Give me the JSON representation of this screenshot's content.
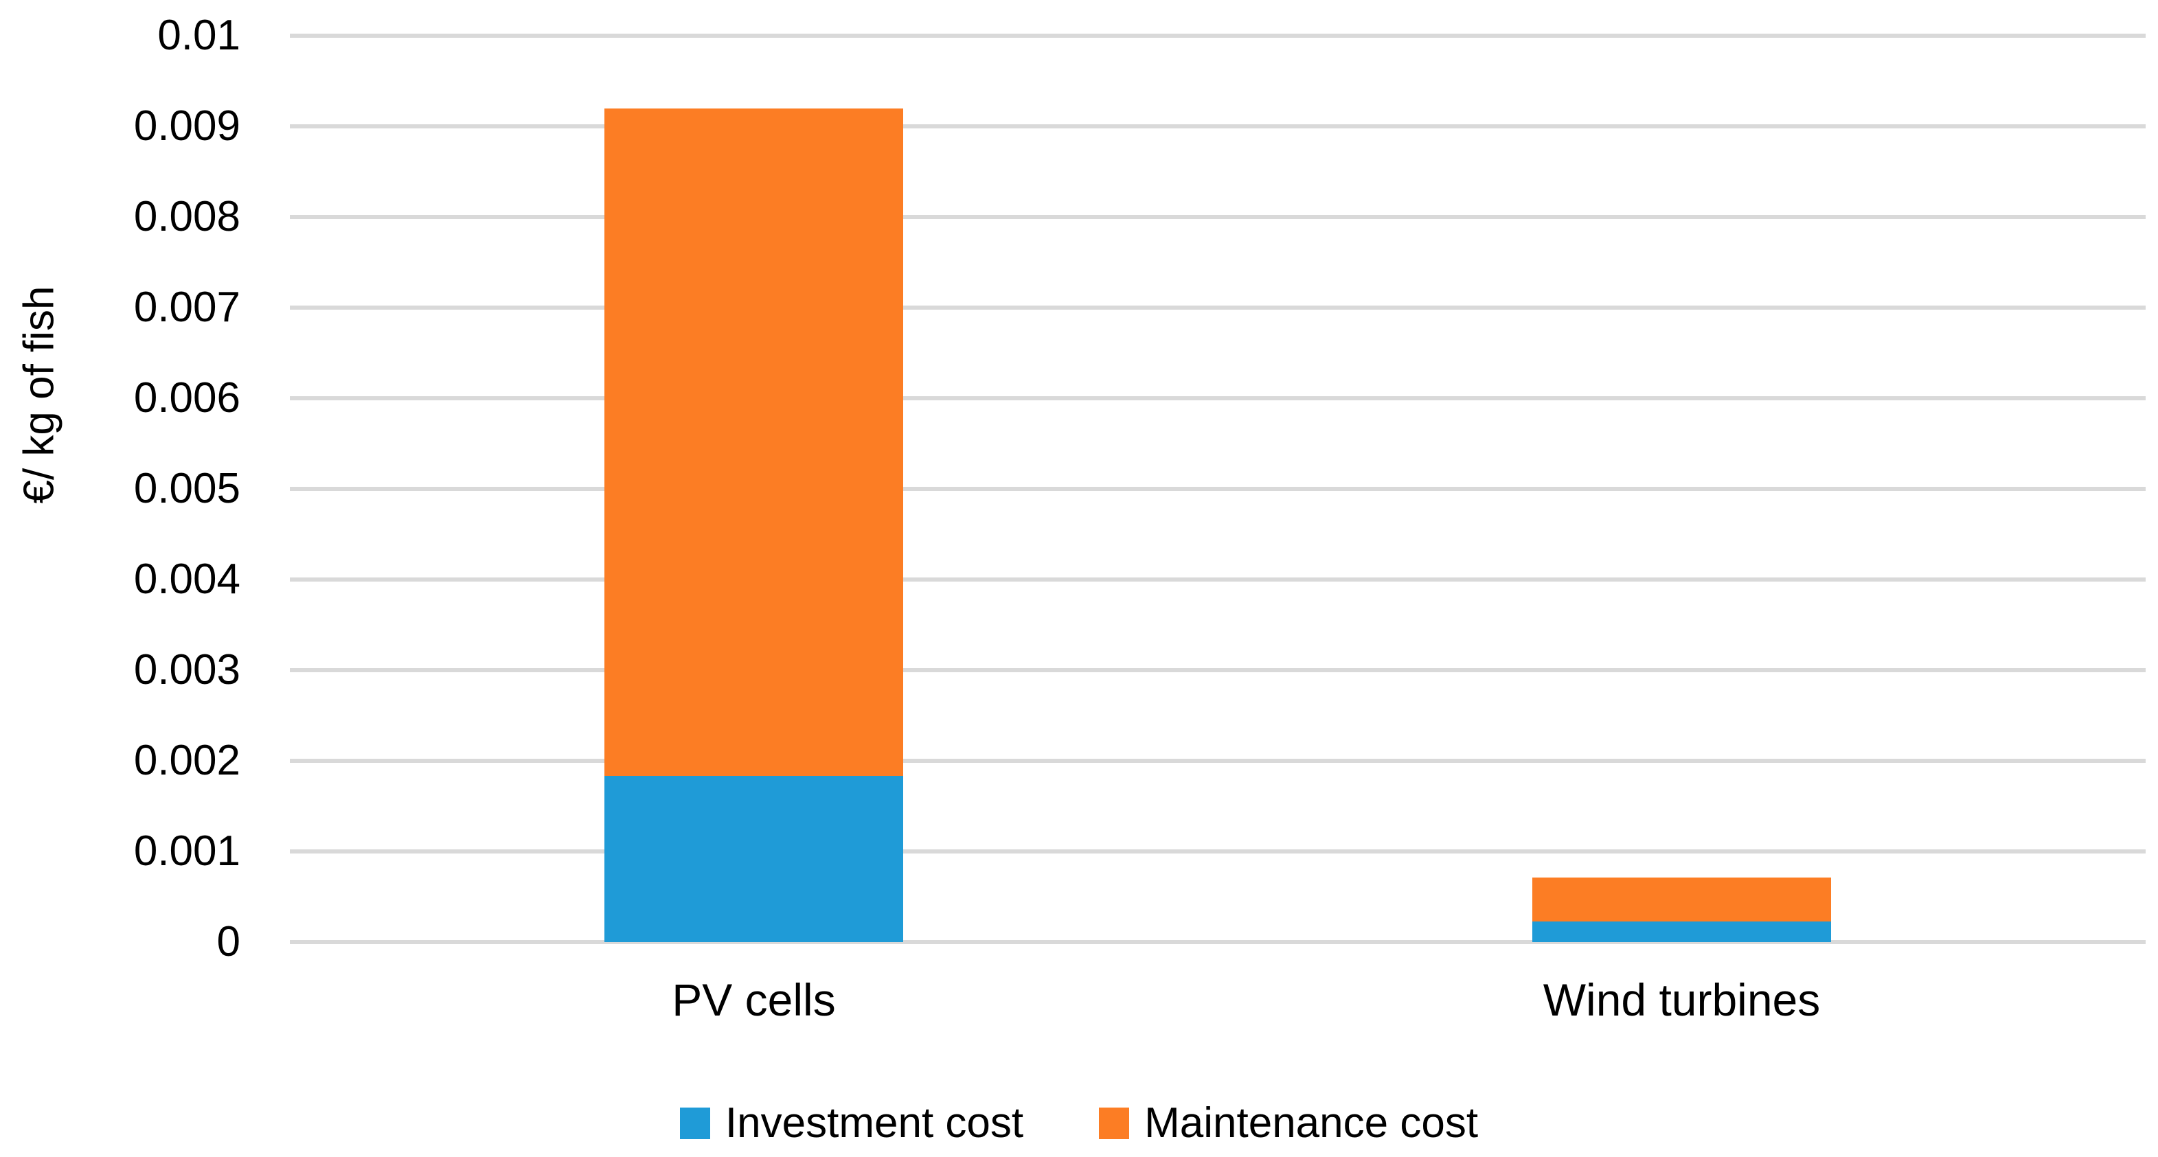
{
  "chart_data": {
    "type": "bar",
    "stacked": true,
    "title": "",
    "xlabel": "",
    "ylabel": "€/ kg of fish",
    "ylim": [
      0,
      0.01
    ],
    "grid": "horizontal-only",
    "legend_position": "bottom",
    "categories": [
      "PV cells",
      "Wind turbines"
    ],
    "series": [
      {
        "name": "Investment cost",
        "color": "#1F9BD7",
        "values": [
          0.00183,
          0.00023
        ]
      },
      {
        "name": "Maintenance cost",
        "color": "#FC7D24",
        "values": [
          0.00737,
          0.00048
        ]
      }
    ],
    "yticks": [
      {
        "label": "0.01",
        "value": 0.01
      },
      {
        "label": "0.009",
        "value": 0.009
      },
      {
        "label": "0.008",
        "value": 0.008
      },
      {
        "label": "0.007",
        "value": 0.007
      },
      {
        "label": "0.006",
        "value": 0.006
      },
      {
        "label": "0.005",
        "value": 0.005
      },
      {
        "label": "0.004",
        "value": 0.004
      },
      {
        "label": "0.003",
        "value": 0.003
      },
      {
        "label": "0.002",
        "value": 0.002
      },
      {
        "label": "0.001",
        "value": 0.001
      },
      {
        "label": "0",
        "value": 0
      }
    ],
    "colors": {
      "gridline": "#D9D9D9",
      "text": "#000000",
      "background": "#FFFFFF"
    }
  }
}
